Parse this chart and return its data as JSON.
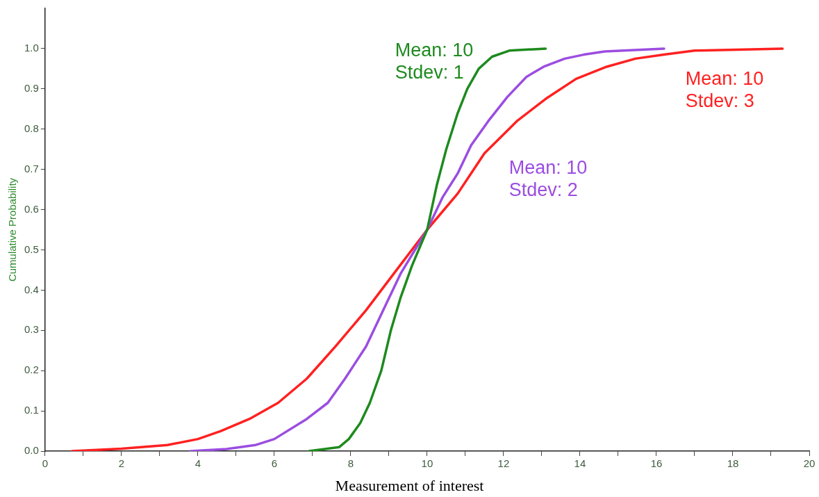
{
  "chart_data": {
    "type": "line",
    "xlabel": "Measurement of interest",
    "ylabel": "Cumulative Probability",
    "xlim": [
      0,
      20
    ],
    "xticks": [
      0,
      {
        "value": 1,
        "label": null
      },
      2,
      {
        "value": 3,
        "label": null
      },
      4,
      {
        "value": 5,
        "label": null
      },
      6,
      {
        "value": 7,
        "label": null
      },
      8,
      {
        "value": 9,
        "label": null
      },
      10,
      {
        "value": 11,
        "label": null
      },
      12,
      {
        "value": 13,
        "label": null
      },
      14,
      {
        "value": 15,
        "label": null
      },
      16,
      {
        "value": 17,
        "label": null
      },
      18,
      {
        "value": 19,
        "label": null
      },
      20
    ],
    "ylim": [
      0,
      1.1
    ],
    "yticks": [
      {
        "value": 0,
        "label": "0.0"
      },
      0.1,
      0.2,
      0.3,
      0.4,
      0.5,
      0.6,
      0.7,
      0.8,
      0.9,
      {
        "value": 1,
        "label": "1.0"
      }
    ],
    "grid": false,
    "legend": false,
    "marker": "none",
    "line_style": "solid",
    "series": [
      {
        "color": "#1e8a1e",
        "x": [
          6.9,
          7.7,
          7.95,
          8.25,
          8.5,
          8.8,
          9.05,
          9.3,
          9.6,
          10,
          10.25,
          10.5,
          10.8,
          11.05,
          11.35,
          11.7,
          12.15,
          13.1
        ],
        "values": [
          0,
          0.01,
          0.03,
          0.07,
          0.12,
          0.2,
          0.3,
          0.38,
          0.46,
          0.55,
          0.66,
          0.75,
          0.84,
          0.9,
          0.95,
          0.98,
          0.995,
          1.0
        ]
      },
      {
        "color": "#9b4de0",
        "x": [
          3.8,
          4.75,
          5.5,
          6.0,
          6.85,
          7.4,
          7.85,
          8.4,
          8.85,
          9.3,
          10,
          10.4,
          10.8,
          11.15,
          11.6,
          12.1,
          12.6,
          13.05,
          13.6,
          14.1,
          14.65,
          16.2
        ],
        "values": [
          0,
          0.005,
          0.015,
          0.03,
          0.08,
          0.12,
          0.18,
          0.26,
          0.35,
          0.44,
          0.55,
          0.63,
          0.69,
          0.76,
          0.82,
          0.88,
          0.93,
          0.955,
          0.975,
          0.985,
          0.993,
          1.0
        ]
      },
      {
        "color": "#ff2020",
        "x": [
          0.7,
          2.0,
          3.2,
          4.0,
          4.6,
          5.35,
          6.1,
          6.85,
          7.6,
          8.4,
          9.2,
          10,
          10.8,
          11.5,
          12.35,
          13.1,
          13.9,
          14.7,
          15.45,
          16.2,
          17.0,
          19.3
        ],
        "values": [
          0,
          0.006,
          0.015,
          0.03,
          0.05,
          0.08,
          0.12,
          0.18,
          0.26,
          0.35,
          0.45,
          0.55,
          0.64,
          0.74,
          0.82,
          0.875,
          0.925,
          0.955,
          0.975,
          0.985,
          0.995,
          1.0
        ]
      }
    ],
    "annotations": [
      "Mean: 10\nStdev: 1",
      "Mean: 10\nStdev: 2",
      "Mean: 10\nStdev: 3"
    ]
  }
}
